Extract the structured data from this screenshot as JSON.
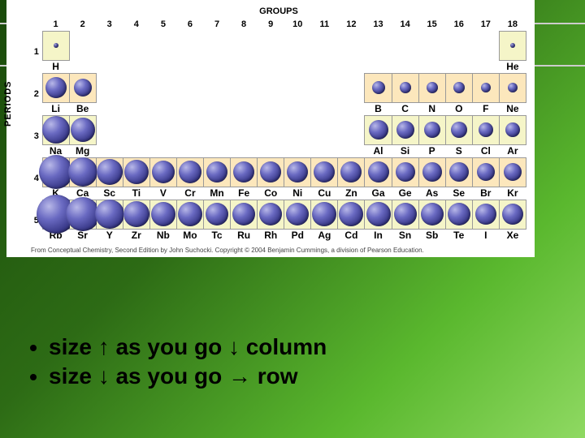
{
  "labels": {
    "groups": "GROUPS",
    "periods": "PERIODS",
    "copyright": "From Conceptual Chemistry, Second Edition by John Suchocki. Copyright © 2004 Benjamin Cummings, a division of Pearson Education."
  },
  "bullets": [
    "size ↑ as you go ↓ column",
    "size ↓ as you go → row"
  ],
  "group_numbers": [
    "1",
    "2",
    "3",
    "4",
    "5",
    "6",
    "7",
    "8",
    "9",
    "10",
    "11",
    "12",
    "13",
    "14",
    "15",
    "16",
    "17",
    "18"
  ],
  "period_numbers": [
    "1",
    "2",
    "3",
    "4",
    "5"
  ],
  "style": {
    "ball_color": "radial #b8b8e8→#1a1a4a",
    "cell_bg": "#f5f5c8",
    "cell_bg_alt": "#fce7bc",
    "cell_border": "#999",
    "background_gradient": [
      "#1a4a0a",
      "#2d6b15",
      "#5ab82e",
      "#8fd962"
    ],
    "bullet_fontsize": 28
  },
  "rows": [
    {
      "period": "1",
      "alt": false,
      "cells": [
        {
          "g": 1,
          "sym": "H",
          "r": 3
        },
        {
          "g": 18,
          "sym": "He",
          "r": 3
        }
      ]
    },
    {
      "period": "2",
      "alt": true,
      "cells": [
        {
          "g": 1,
          "sym": "Li",
          "r": 13
        },
        {
          "g": 2,
          "sym": "Be",
          "r": 11
        },
        {
          "g": 13,
          "sym": "B",
          "r": 8
        },
        {
          "g": 14,
          "sym": "C",
          "r": 7
        },
        {
          "g": 15,
          "sym": "N",
          "r": 7
        },
        {
          "g": 16,
          "sym": "O",
          "r": 7
        },
        {
          "g": 17,
          "sym": "F",
          "r": 6
        },
        {
          "g": 18,
          "sym": "Ne",
          "r": 6
        }
      ]
    },
    {
      "period": "3",
      "alt": false,
      "cells": [
        {
          "g": 1,
          "sym": "Na",
          "r": 17
        },
        {
          "g": 2,
          "sym": "Mg",
          "r": 15
        },
        {
          "g": 13,
          "sym": "Al",
          "r": 12
        },
        {
          "g": 14,
          "sym": "Si",
          "r": 11
        },
        {
          "g": 15,
          "sym": "P",
          "r": 10
        },
        {
          "g": 16,
          "sym": "S",
          "r": 10
        },
        {
          "g": 17,
          "sym": "Cl",
          "r": 9
        },
        {
          "g": 18,
          "sym": "Ar",
          "r": 9
        }
      ]
    },
    {
      "period": "4",
      "alt": true,
      "cells": [
        {
          "g": 1,
          "sym": "K",
          "r": 21
        },
        {
          "g": 2,
          "sym": "Ca",
          "r": 18
        },
        {
          "g": 3,
          "sym": "Sc",
          "r": 16
        },
        {
          "g": 4,
          "sym": "Ti",
          "r": 15
        },
        {
          "g": 5,
          "sym": "V",
          "r": 14
        },
        {
          "g": 6,
          "sym": "Cr",
          "r": 14
        },
        {
          "g": 7,
          "sym": "Mn",
          "r": 13
        },
        {
          "g": 8,
          "sym": "Fe",
          "r": 13
        },
        {
          "g": 9,
          "sym": "Co",
          "r": 13
        },
        {
          "g": 10,
          "sym": "Ni",
          "r": 13
        },
        {
          "g": 11,
          "sym": "Cu",
          "r": 13
        },
        {
          "g": 12,
          "sym": "Zn",
          "r": 13
        },
        {
          "g": 13,
          "sym": "Ga",
          "r": 13
        },
        {
          "g": 14,
          "sym": "Ge",
          "r": 12
        },
        {
          "g": 15,
          "sym": "As",
          "r": 12
        },
        {
          "g": 16,
          "sym": "Se",
          "r": 12
        },
        {
          "g": 17,
          "sym": "Br",
          "r": 11
        },
        {
          "g": 18,
          "sym": "Kr",
          "r": 11
        }
      ]
    },
    {
      "period": "5",
      "alt": false,
      "cells": [
        {
          "g": 1,
          "sym": "Rb",
          "r": 24
        },
        {
          "g": 2,
          "sym": "Sr",
          "r": 21
        },
        {
          "g": 3,
          "sym": "Y",
          "r": 18
        },
        {
          "g": 4,
          "sym": "Zr",
          "r": 16
        },
        {
          "g": 5,
          "sym": "Nb",
          "r": 15
        },
        {
          "g": 6,
          "sym": "Mo",
          "r": 15
        },
        {
          "g": 7,
          "sym": "Tc",
          "r": 14
        },
        {
          "g": 8,
          "sym": "Ru",
          "r": 14
        },
        {
          "g": 9,
          "sym": "Rh",
          "r": 14
        },
        {
          "g": 10,
          "sym": "Pd",
          "r": 14
        },
        {
          "g": 11,
          "sym": "Ag",
          "r": 15
        },
        {
          "g": 12,
          "sym": "Cd",
          "r": 15
        },
        {
          "g": 13,
          "sym": "In",
          "r": 15
        },
        {
          "g": 14,
          "sym": "Sn",
          "r": 14
        },
        {
          "g": 15,
          "sym": "Sb",
          "r": 14
        },
        {
          "g": 16,
          "sym": "Te",
          "r": 14
        },
        {
          "g": 17,
          "sym": "I",
          "r": 13
        },
        {
          "g": 18,
          "sym": "Xe",
          "r": 13
        }
      ]
    }
  ]
}
